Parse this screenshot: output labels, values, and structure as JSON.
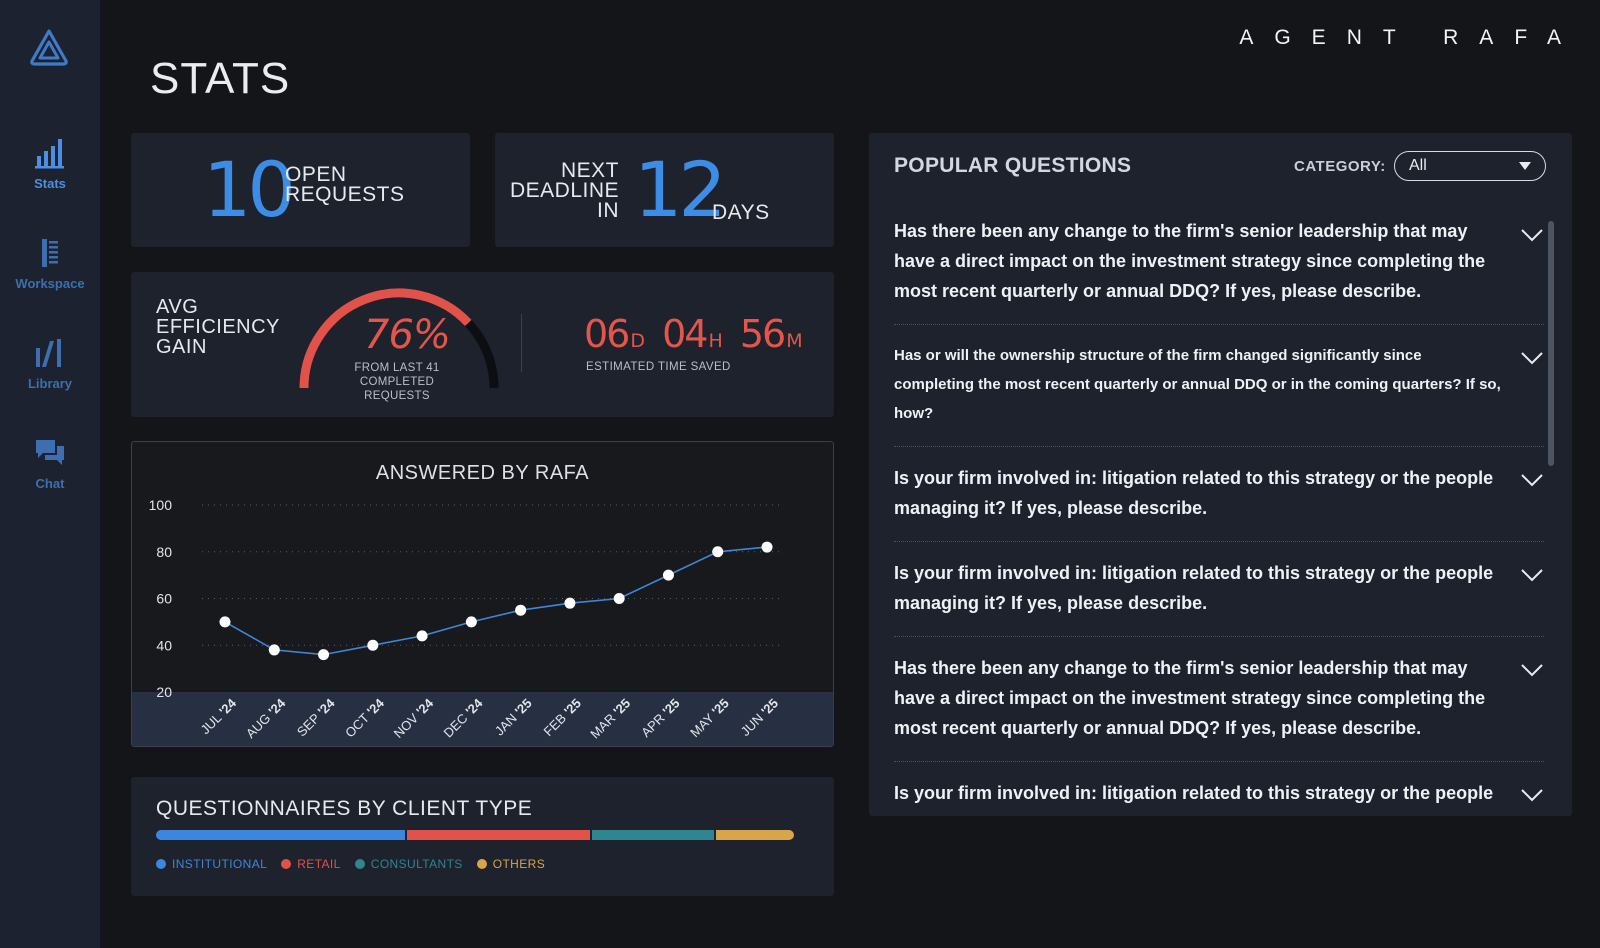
{
  "app": {
    "brand": "AGENT RAFA"
  },
  "page": {
    "title": "STATS"
  },
  "sidebar": {
    "items": [
      {
        "label": "Stats",
        "icon": "bar-chart-icon",
        "active": true
      },
      {
        "label": "Workspace",
        "icon": "workspace-icon",
        "active": false
      },
      {
        "label": "Library",
        "icon": "library-icon",
        "active": false
      },
      {
        "label": "Chat",
        "icon": "chat-icon",
        "active": false
      }
    ]
  },
  "open_requests": {
    "value": "10",
    "label_line1": "OPEN",
    "label_line2": "REQUESTS"
  },
  "deadline": {
    "label_line1": "NEXT",
    "label_line2": "DEADLINE",
    "label_line3": "IN",
    "value": "12",
    "unit": "DAYS"
  },
  "efficiency": {
    "label_line1": "AVG",
    "label_line2": "EFFICIENCY",
    "label_line3": "GAIN",
    "percent_text": "76%",
    "percent_value": 76,
    "sub_line1": "FROM LAST 41",
    "sub_line2": "COMPLETED REQUESTS"
  },
  "time_saved": {
    "days": "06",
    "days_unit": "D",
    "hours": "04",
    "hours_unit": "H",
    "minutes": "56",
    "minutes_unit": "M",
    "label": "ESTIMATED TIME SAVED"
  },
  "chart_data": {
    "type": "line",
    "title": "ANSWERED BY RAFA",
    "xlabel": "",
    "ylabel": "",
    "categories": [
      "JUL '24",
      "AUG '24",
      "SEP '24",
      "OCT '24",
      "NOV '24",
      "DEC '24",
      "JAN '25",
      "FEB '25",
      "MAR '25",
      "APR '25",
      "MAY '25",
      "JUN '25"
    ],
    "category_months": [
      "JUL",
      "AUG",
      "SEP",
      "OCT",
      "NOV",
      "DEC",
      "JAN",
      "FEB",
      "MAR",
      "APR",
      "MAY",
      "JUN"
    ],
    "category_years": [
      "'24",
      "'24",
      "'24",
      "'24",
      "'24",
      "'24",
      "'25",
      "'25",
      "'25",
      "'25",
      "'25",
      "'25"
    ],
    "values": [
      50,
      38,
      36,
      40,
      44,
      50,
      55,
      58,
      60,
      70,
      80,
      82
    ],
    "yticks": [
      100,
      80,
      60,
      40,
      20
    ],
    "ylim": [
      20,
      100
    ],
    "grid": true,
    "line_color": "#3f86d9",
    "marker_color": "#ffffff"
  },
  "client_types": {
    "title": "QUESTIONNAIRES BY CLIENT TYPE",
    "segments": [
      {
        "label": "INSTITUTIONAL",
        "share": 0.39,
        "color": "#3d86de"
      },
      {
        "label": "RETAIL",
        "share": 0.29,
        "color": "#e0524a"
      },
      {
        "label": "CONSULTANTS",
        "share": 0.195,
        "color": "#2f8590"
      },
      {
        "label": "OTHERS",
        "share": 0.125,
        "color": "#d9a54a"
      }
    ]
  },
  "popular_questions": {
    "title": "POPULAR QUESTIONS",
    "category_label": "CATEGORY:",
    "category_value": "All",
    "items": [
      {
        "text": "Has there been any change to the firm's senior leadership that may have a direct impact on the investment strategy since completing the most recent quarterly or annual DDQ? If yes, please describe.",
        "size": "big"
      },
      {
        "text": "Has or will the ownership structure of the firm changed significantly since completing the most recent quarterly or annual DDQ or in the coming quarters? If so, how?",
        "size": "small"
      },
      {
        "text": "Is your firm involved in: litigation related to this strategy or the people managing it? If yes, please describe.",
        "size": "big"
      },
      {
        "text": "Is your firm involved in: litigation related to this strategy or the people managing it? If yes, please describe.",
        "size": "big"
      },
      {
        "text": "Has there been any change to the firm's senior leadership that may have a direct impact on the investment strategy since completing the most recent quarterly or annual DDQ? If yes, please describe.",
        "size": "big"
      },
      {
        "text": "Is your firm involved in: litigation related to this strategy or the people managing it? If yes, please describe.",
        "size": "big"
      }
    ]
  }
}
